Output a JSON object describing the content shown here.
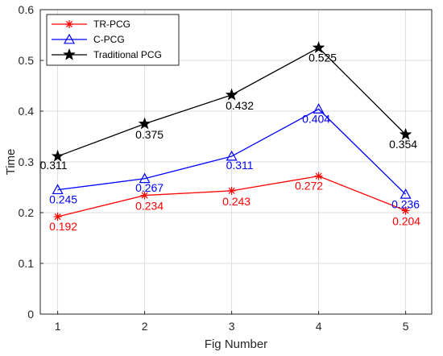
{
  "chart_data": {
    "type": "line",
    "xlabel": "Fig Number",
    "ylabel": "Time",
    "x": [
      1,
      2,
      3,
      4,
      5
    ],
    "xlim": [
      0.8,
      5.3
    ],
    "ylim": [
      0,
      0.6
    ],
    "yticks": [
      "0",
      "0.1",
      "0.2",
      "0.3",
      "0.4",
      "0.5",
      "0.6"
    ],
    "xticks": [
      "1",
      "2",
      "3",
      "4",
      "5"
    ],
    "grid": true,
    "legend_position": "top-left",
    "series": [
      {
        "name": "TR-PCG",
        "color": "#ff0000",
        "marker": "asterisk",
        "values": [
          0.192,
          0.234,
          0.243,
          0.272,
          0.204
        ],
        "labels": [
          "0.192",
          "0.234",
          "0.243",
          "0.272",
          "0.204"
        ]
      },
      {
        "name": "C-PCG",
        "color": "#0000ff",
        "marker": "triangle",
        "values": [
          0.245,
          0.267,
          0.311,
          0.404,
          0.236
        ],
        "labels": [
          "0.245",
          "0.267",
          "0.311",
          "0.404",
          "0.236"
        ]
      },
      {
        "name": "Traditional PCG",
        "color": "#000000",
        "marker": "star",
        "values": [
          0.311,
          0.375,
          0.432,
          0.525,
          0.354
        ],
        "labels": [
          "0.311",
          "0.375",
          "0.432",
          "0.525",
          "0.354"
        ]
      }
    ]
  }
}
